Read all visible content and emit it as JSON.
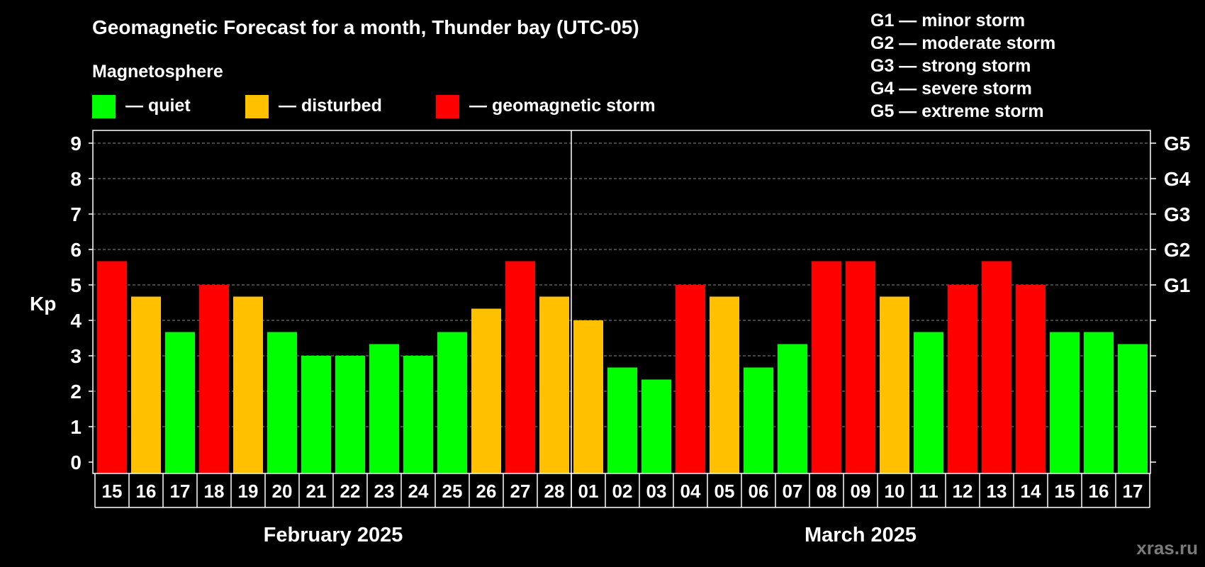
{
  "chart_data": {
    "type": "bar",
    "title": "Geomagnetic Forecast for a month, Thunder bay (UTC-05)",
    "ylabel": "Kp",
    "ylim": [
      0,
      9
    ],
    "yticks": [
      "0",
      "1",
      "2",
      "3",
      "4",
      "5",
      "6",
      "7",
      "8",
      "9"
    ],
    "right_axis": [
      {
        "kp": 5,
        "label": "G1"
      },
      {
        "kp": 6,
        "label": "G2"
      },
      {
        "kp": 7,
        "label": "G3"
      },
      {
        "kp": 8,
        "label": "G4"
      },
      {
        "kp": 9,
        "label": "G5"
      }
    ],
    "categories": [
      "15",
      "16",
      "17",
      "18",
      "19",
      "20",
      "21",
      "22",
      "23",
      "24",
      "25",
      "26",
      "27",
      "28",
      "01",
      "02",
      "03",
      "04",
      "05",
      "06",
      "07",
      "08",
      "09",
      "10",
      "11",
      "12",
      "13",
      "14",
      "15",
      "16",
      "17"
    ],
    "values": [
      5.67,
      4.67,
      3.67,
      5.0,
      4.67,
      3.67,
      3.0,
      3.0,
      3.33,
      3.0,
      3.67,
      4.33,
      5.67,
      4.67,
      4.0,
      2.67,
      2.33,
      5.0,
      4.67,
      2.67,
      3.33,
      5.67,
      5.67,
      4.67,
      3.67,
      5.0,
      5.67,
      5.0,
      3.67,
      3.67,
      3.33
    ],
    "states": [
      "storm",
      "disturbed",
      "quiet",
      "storm",
      "disturbed",
      "quiet",
      "quiet",
      "quiet",
      "quiet",
      "quiet",
      "quiet",
      "disturbed",
      "storm",
      "disturbed",
      "disturbed",
      "quiet",
      "quiet",
      "storm",
      "disturbed",
      "quiet",
      "quiet",
      "storm",
      "storm",
      "disturbed",
      "quiet",
      "storm",
      "storm",
      "storm",
      "quiet",
      "quiet",
      "quiet"
    ],
    "months": [
      {
        "label": "February 2025",
        "start": 0,
        "end": 13
      },
      {
        "label": "March 2025",
        "start": 14,
        "end": 30
      }
    ],
    "legend": {
      "title": "Magnetosphere",
      "items": [
        {
          "key": "quiet",
          "label": "— quiet",
          "color": "#00ff00"
        },
        {
          "key": "disturbed",
          "label": "— disturbed",
          "color": "#ffc000"
        },
        {
          "key": "storm",
          "label": "— geomagnetic storm",
          "color": "#ff0000"
        }
      ]
    },
    "storm_scale": [
      "G1 — minor storm",
      "G2 — moderate storm",
      "G3 — strong storm",
      "G4 — severe storm",
      "G5 — extreme storm"
    ],
    "grid": true
  },
  "watermark": "xras.ru"
}
